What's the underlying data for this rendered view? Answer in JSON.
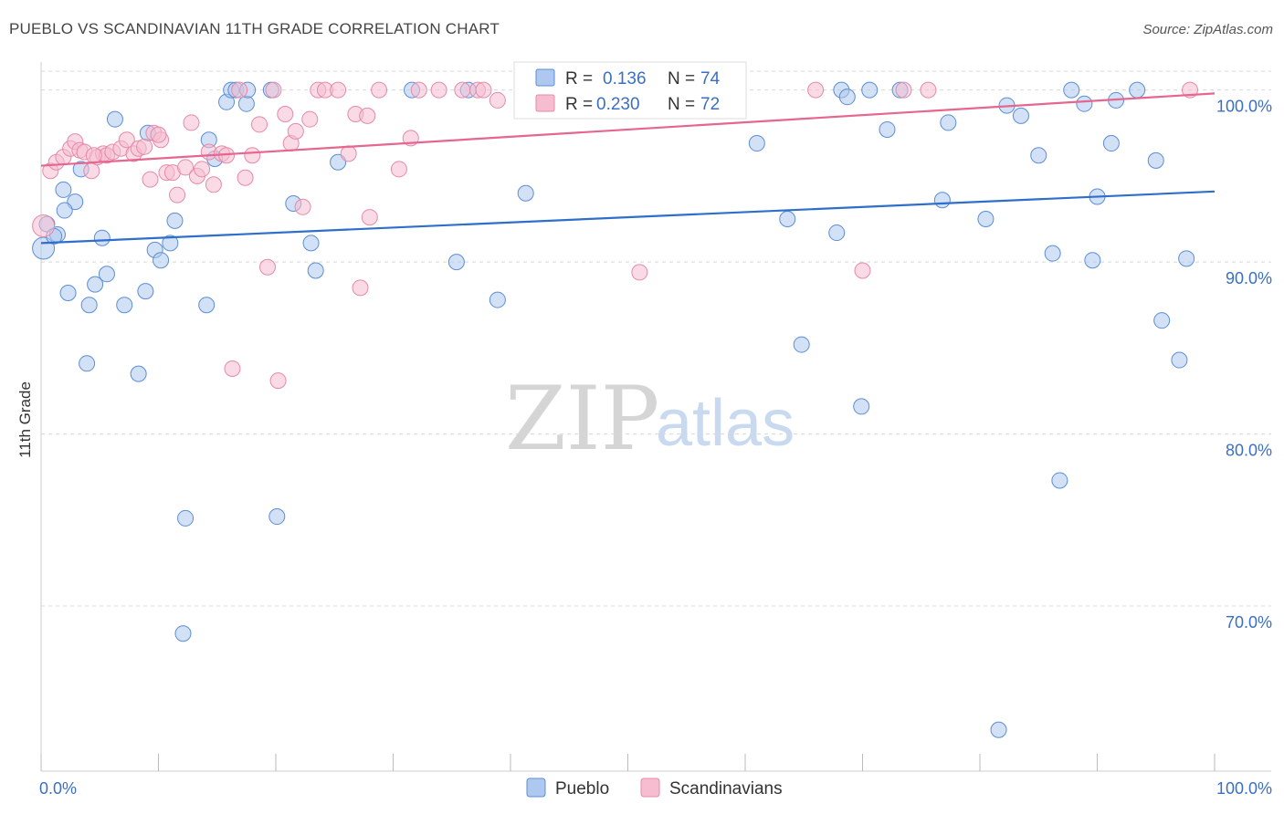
{
  "title": "PUEBLO VS SCANDINAVIAN 11TH GRADE CORRELATION CHART",
  "source": "Source: ZipAtlas.com",
  "watermark": {
    "zip": "ZIP",
    "atlas": "atlas"
  },
  "colors": {
    "pueblo_fill": "#aec8ef",
    "pueblo_stroke": "#5b8ed6",
    "pueblo_line": "#2e6fcb",
    "scand_fill": "#f6bdd0",
    "scand_stroke": "#e58aa8",
    "scand_line": "#e5668f",
    "grid": "#d8d8d8",
    "axis_text": "#3b6fc4"
  },
  "legend": {
    "r_label": "R =",
    "n_label": "N =",
    "pueblo": {
      "r": "0.136",
      "n": "74"
    },
    "scand": {
      "r": "0.230",
      "n": "72"
    }
  },
  "bottom_legend": [
    "Pueblo",
    "Scandinavians"
  ],
  "chart_data": {
    "type": "scatter",
    "xlabel": "",
    "ylabel": "11th Grade",
    "xlim": [
      0,
      100
    ],
    "ylim": [
      60.4,
      101.2
    ],
    "x_tick_labels": [
      "0.0%",
      "100.0%"
    ],
    "y_ticks": [
      70,
      80,
      90,
      100
    ],
    "y_tick_labels": [
      "70.0%",
      "80.0%",
      "90.0%",
      "100.0%"
    ],
    "series": [
      {
        "name": "Pueblo",
        "r": 0.136,
        "n": 74,
        "trend": {
          "x": [
            0,
            100
          ],
          "y": [
            91.1,
            94.1
          ]
        },
        "points": [
          [
            0.2,
            90.8
          ],
          [
            0.5,
            92.2
          ],
          [
            1.4,
            91.6
          ],
          [
            1.9,
            94.2
          ],
          [
            2.3,
            88.2
          ],
          [
            2.9,
            93.5
          ],
          [
            3.4,
            95.4
          ],
          [
            3.9,
            84.1
          ],
          [
            4.1,
            87.5
          ],
          [
            4.6,
            88.7
          ],
          [
            5.2,
            91.4
          ],
          [
            5.6,
            89.3
          ],
          [
            6.3,
            98.3
          ],
          [
            7.1,
            87.5
          ],
          [
            8.3,
            83.5
          ],
          [
            8.9,
            88.3
          ],
          [
            9.1,
            97.5
          ],
          [
            9.7,
            90.7
          ],
          [
            10.2,
            90.1
          ],
          [
            11.0,
            91.1
          ],
          [
            11.4,
            92.4
          ],
          [
            12.1,
            68.4
          ],
          [
            12.3,
            75.1
          ],
          [
            14.1,
            87.5
          ],
          [
            14.3,
            97.1
          ],
          [
            14.8,
            96.0
          ],
          [
            15.8,
            99.3
          ],
          [
            16.2,
            100.0
          ],
          [
            16.6,
            100.0
          ],
          [
            17.5,
            99.2
          ],
          [
            17.6,
            100.0
          ],
          [
            19.6,
            100.0
          ],
          [
            20.1,
            75.2
          ],
          [
            21.5,
            93.4
          ],
          [
            23.0,
            91.1
          ],
          [
            23.4,
            89.5
          ],
          [
            25.3,
            95.8
          ],
          [
            31.6,
            100.0
          ],
          [
            35.4,
            90.0
          ],
          [
            36.4,
            100.0
          ],
          [
            38.9,
            87.8
          ],
          [
            41.3,
            94.0
          ],
          [
            61.0,
            96.9
          ],
          [
            63.6,
            92.5
          ],
          [
            64.8,
            85.2
          ],
          [
            67.8,
            91.7
          ],
          [
            68.2,
            100.0
          ],
          [
            68.7,
            99.6
          ],
          [
            69.9,
            81.6
          ],
          [
            70.6,
            100.0
          ],
          [
            72.1,
            97.7
          ],
          [
            73.2,
            100.0
          ],
          [
            76.8,
            93.6
          ],
          [
            77.3,
            98.1
          ],
          [
            80.5,
            92.5
          ],
          [
            81.6,
            62.8
          ],
          [
            82.3,
            99.1
          ],
          [
            83.5,
            98.5
          ],
          [
            85.0,
            96.2
          ],
          [
            86.2,
            90.5
          ],
          [
            86.8,
            77.3
          ],
          [
            87.8,
            100.0
          ],
          [
            88.9,
            99.2
          ],
          [
            89.6,
            90.1
          ],
          [
            90.0,
            93.8
          ],
          [
            91.2,
            96.9
          ],
          [
            91.6,
            99.4
          ],
          [
            93.4,
            100.0
          ],
          [
            95.0,
            95.9
          ],
          [
            95.5,
            86.6
          ],
          [
            97.0,
            84.3
          ],
          [
            97.6,
            90.2
          ],
          [
            1.1,
            91.5
          ],
          [
            2.0,
            93.0
          ]
        ]
      },
      {
        "name": "Scandinavians",
        "r": 0.23,
        "n": 72,
        "trend": {
          "x": [
            0,
            100
          ],
          "y": [
            95.6,
            99.8
          ]
        },
        "points": [
          [
            0.2,
            92.1
          ],
          [
            0.8,
            95.3
          ],
          [
            1.3,
            95.8
          ],
          [
            1.9,
            96.1
          ],
          [
            2.5,
            96.6
          ],
          [
            2.9,
            97.0
          ],
          [
            3.3,
            96.5
          ],
          [
            3.7,
            96.4
          ],
          [
            4.3,
            95.3
          ],
          [
            4.8,
            96.1
          ],
          [
            5.3,
            96.3
          ],
          [
            5.6,
            96.2
          ],
          [
            6.1,
            96.4
          ],
          [
            6.8,
            96.6
          ],
          [
            7.3,
            97.1
          ],
          [
            7.9,
            96.3
          ],
          [
            8.3,
            96.6
          ],
          [
            8.8,
            96.7
          ],
          [
            9.3,
            94.8
          ],
          [
            9.6,
            97.5
          ],
          [
            10.2,
            97.1
          ],
          [
            10.7,
            95.2
          ],
          [
            11.2,
            95.2
          ],
          [
            11.6,
            93.9
          ],
          [
            12.3,
            95.5
          ],
          [
            12.8,
            98.1
          ],
          [
            13.3,
            95.0
          ],
          [
            13.7,
            95.4
          ],
          [
            14.3,
            96.4
          ],
          [
            14.7,
            94.5
          ],
          [
            15.4,
            96.3
          ],
          [
            15.8,
            96.2
          ],
          [
            16.3,
            83.8
          ],
          [
            16.9,
            100.0
          ],
          [
            17.4,
            94.9
          ],
          [
            18.0,
            96.2
          ],
          [
            18.6,
            98.0
          ],
          [
            19.3,
            89.7
          ],
          [
            19.8,
            100.0
          ],
          [
            20.2,
            83.1
          ],
          [
            20.8,
            98.6
          ],
          [
            21.3,
            96.9
          ],
          [
            21.7,
            97.6
          ],
          [
            22.3,
            93.2
          ],
          [
            22.9,
            98.3
          ],
          [
            23.6,
            100.0
          ],
          [
            24.2,
            100.0
          ],
          [
            25.3,
            100.0
          ],
          [
            26.2,
            96.3
          ],
          [
            26.8,
            98.6
          ],
          [
            27.2,
            88.5
          ],
          [
            27.8,
            98.5
          ],
          [
            28.0,
            92.6
          ],
          [
            28.8,
            100.0
          ],
          [
            30.5,
            95.4
          ],
          [
            31.5,
            97.2
          ],
          [
            32.2,
            100.0
          ],
          [
            33.9,
            100.0
          ],
          [
            35.9,
            100.0
          ],
          [
            37.2,
            100.0
          ],
          [
            37.7,
            100.0
          ],
          [
            38.9,
            99.4
          ],
          [
            42.0,
            100.0
          ],
          [
            46.7,
            100.0
          ],
          [
            51.0,
            89.4
          ],
          [
            66.0,
            100.0
          ],
          [
            70.0,
            89.5
          ],
          [
            73.5,
            100.0
          ],
          [
            75.6,
            100.0
          ],
          [
            97.9,
            100.0
          ],
          [
            4.5,
            96.2
          ],
          [
            10.0,
            97.4
          ]
        ]
      }
    ]
  }
}
